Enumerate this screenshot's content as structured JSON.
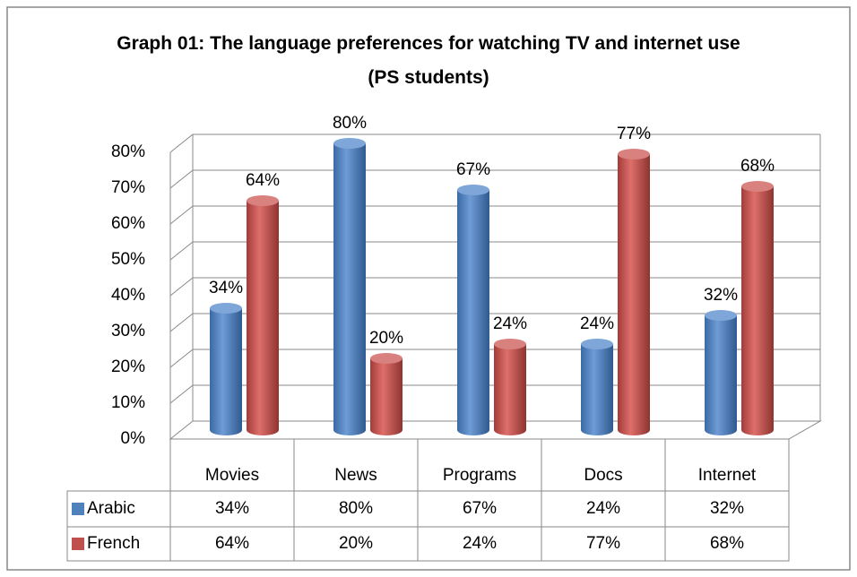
{
  "chart_data": {
    "type": "bar",
    "title": "Graph 01: The language preferences for watching TV and internet use (PS students)",
    "categories": [
      "Movies",
      "News",
      "Programs",
      "Docs",
      "Internet"
    ],
    "series": [
      {
        "name": "Arabic",
        "color": "#4f81bd",
        "values": [
          34,
          80,
          67,
          24,
          32
        ],
        "value_labels": [
          "34%",
          "80%",
          "67%",
          "24%",
          "32%"
        ]
      },
      {
        "name": "French",
        "color": "#c0504d",
        "values": [
          64,
          20,
          24,
          77,
          68
        ],
        "value_labels": [
          "64%",
          "20%",
          "24%",
          "77%",
          "68%"
        ]
      }
    ],
    "ylim": [
      0,
      80
    ],
    "yticks": [
      {
        "value": 0,
        "label": "0%"
      },
      {
        "value": 10,
        "label": "10%"
      },
      {
        "value": 20,
        "label": "20%"
      },
      {
        "value": 30,
        "label": "30%"
      },
      {
        "value": 40,
        "label": "40%"
      },
      {
        "value": 50,
        "label": "50%"
      },
      {
        "value": 60,
        "label": "60%"
      },
      {
        "value": 70,
        "label": "70%"
      },
      {
        "value": 80,
        "label": "80%"
      }
    ],
    "grid": true
  }
}
